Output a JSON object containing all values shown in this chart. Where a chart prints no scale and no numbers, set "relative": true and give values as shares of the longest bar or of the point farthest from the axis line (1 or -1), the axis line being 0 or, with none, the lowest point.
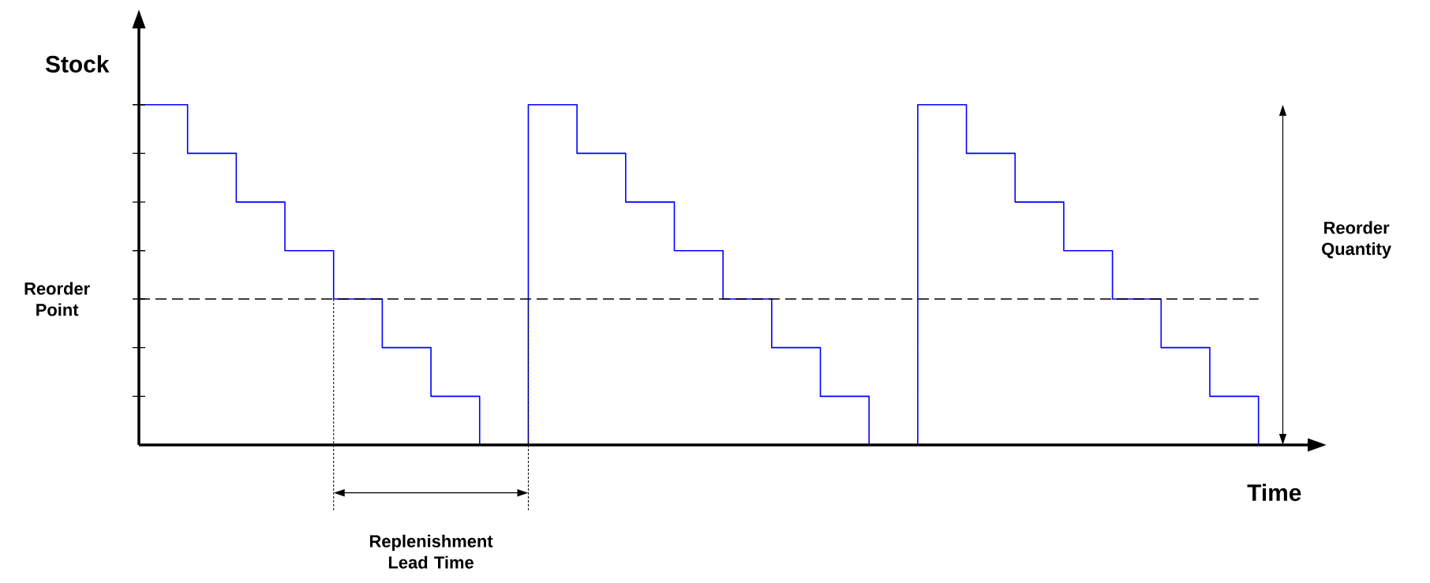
{
  "chart_data": {
    "type": "step",
    "relative": true,
    "xlabel": "Time",
    "ylabel": "Stock",
    "color": "#0000ff",
    "categories": [
      null,
      null,
      null,
      null,
      null,
      null,
      null,
      null,
      null,
      null,
      null,
      null,
      null,
      null,
      null,
      null,
      null,
      null,
      null,
      null,
      null,
      null,
      null,
      null
    ],
    "values": [
      1,
      0.857,
      0.714,
      0.571,
      0.429,
      0.286,
      0.143,
      0,
      1,
      0.857,
      0.714,
      0.571,
      0.429,
      0.286,
      0.143,
      0,
      1,
      0.857,
      0.714,
      0.571,
      0.429,
      0.286,
      0.143,
      0
    ],
    "ref_lines": [
      {
        "axis": "y",
        "value": 0.429,
        "label": "Reorder Point",
        "color": "#000000",
        "line_style": "dashed"
      }
    ],
    "annotations": [
      "Reorder Quantity",
      "Replenishment Lead Time"
    ]
  }
}
